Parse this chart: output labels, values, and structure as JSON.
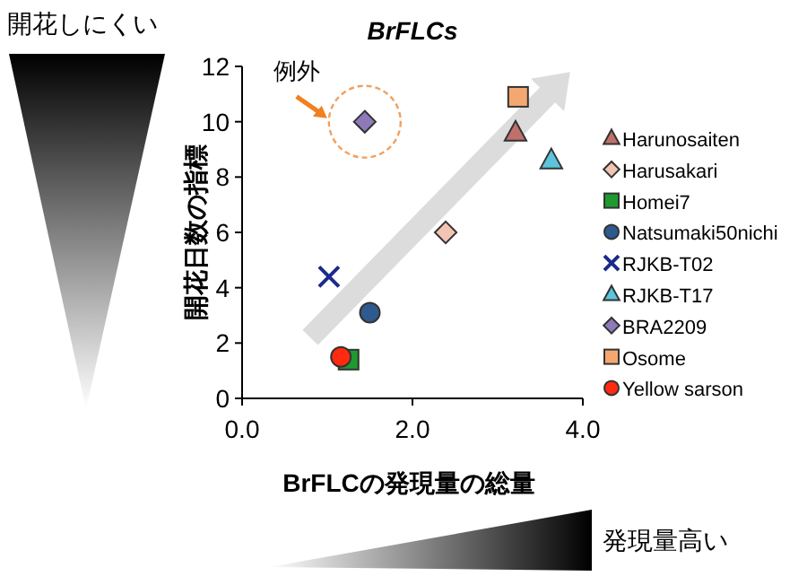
{
  "chart_data": {
    "type": "scatter",
    "title": "BrFLCs",
    "xlabel": "BrFLCの発現量の総量",
    "ylabel": "開花日数の指標",
    "xlim": [
      0,
      4
    ],
    "ylim": [
      0,
      12
    ],
    "xticks": [
      {
        "value": 0,
        "label": "0.0"
      },
      {
        "value": 2,
        "label": "2.0"
      },
      {
        "value": 4,
        "label": "4.0"
      }
    ],
    "yticks": [
      0,
      2,
      4,
      6,
      8,
      10,
      12
    ],
    "legend": "right",
    "grid": false,
    "series": [
      {
        "name": "Harunosaiten",
        "color": "#c0706a",
        "marker": "triangle",
        "x": [
          3.21
        ],
        "values": [
          9.6
        ]
      },
      {
        "name": "Harusakari",
        "color": "#f2c4b4",
        "marker": "diamond",
        "x": [
          2.39
        ],
        "values": [
          6.0
        ]
      },
      {
        "name": "Homei7",
        "color": "#1e9a2e",
        "marker": "square",
        "x": [
          1.25
        ],
        "values": [
          1.4
        ]
      },
      {
        "name": "Natsumaki50nichi",
        "color": "#2e5a8e",
        "marker": "circle",
        "x": [
          1.5
        ],
        "values": [
          3.1
        ]
      },
      {
        "name": "RJKB-T02",
        "color": "#1a2a8c",
        "marker": "cross",
        "x": [
          1.02
        ],
        "values": [
          4.4
        ]
      },
      {
        "name": "RJKB-T17",
        "color": "#5cc4dc",
        "marker": "triangle",
        "x": [
          3.63
        ],
        "values": [
          8.6
        ]
      },
      {
        "name": "BRA2209",
        "color": "#8e7ab8",
        "marker": "diamond",
        "x": [
          1.44
        ],
        "values": [
          10.0
        ]
      },
      {
        "name": "Osome",
        "color": "#f4a870",
        "marker": "square",
        "x": [
          3.24
        ],
        "values": [
          10.9
        ]
      },
      {
        "name": "Yellow sarson",
        "color": "#ff2a10",
        "marker": "circle",
        "x": [
          1.16
        ],
        "values": [
          1.5
        ]
      }
    ],
    "annotations": [
      {
        "text": "例外",
        "x": 1.44,
        "y": 10.0
      },
      "開花しにくい",
      "発現量高い"
    ]
  }
}
